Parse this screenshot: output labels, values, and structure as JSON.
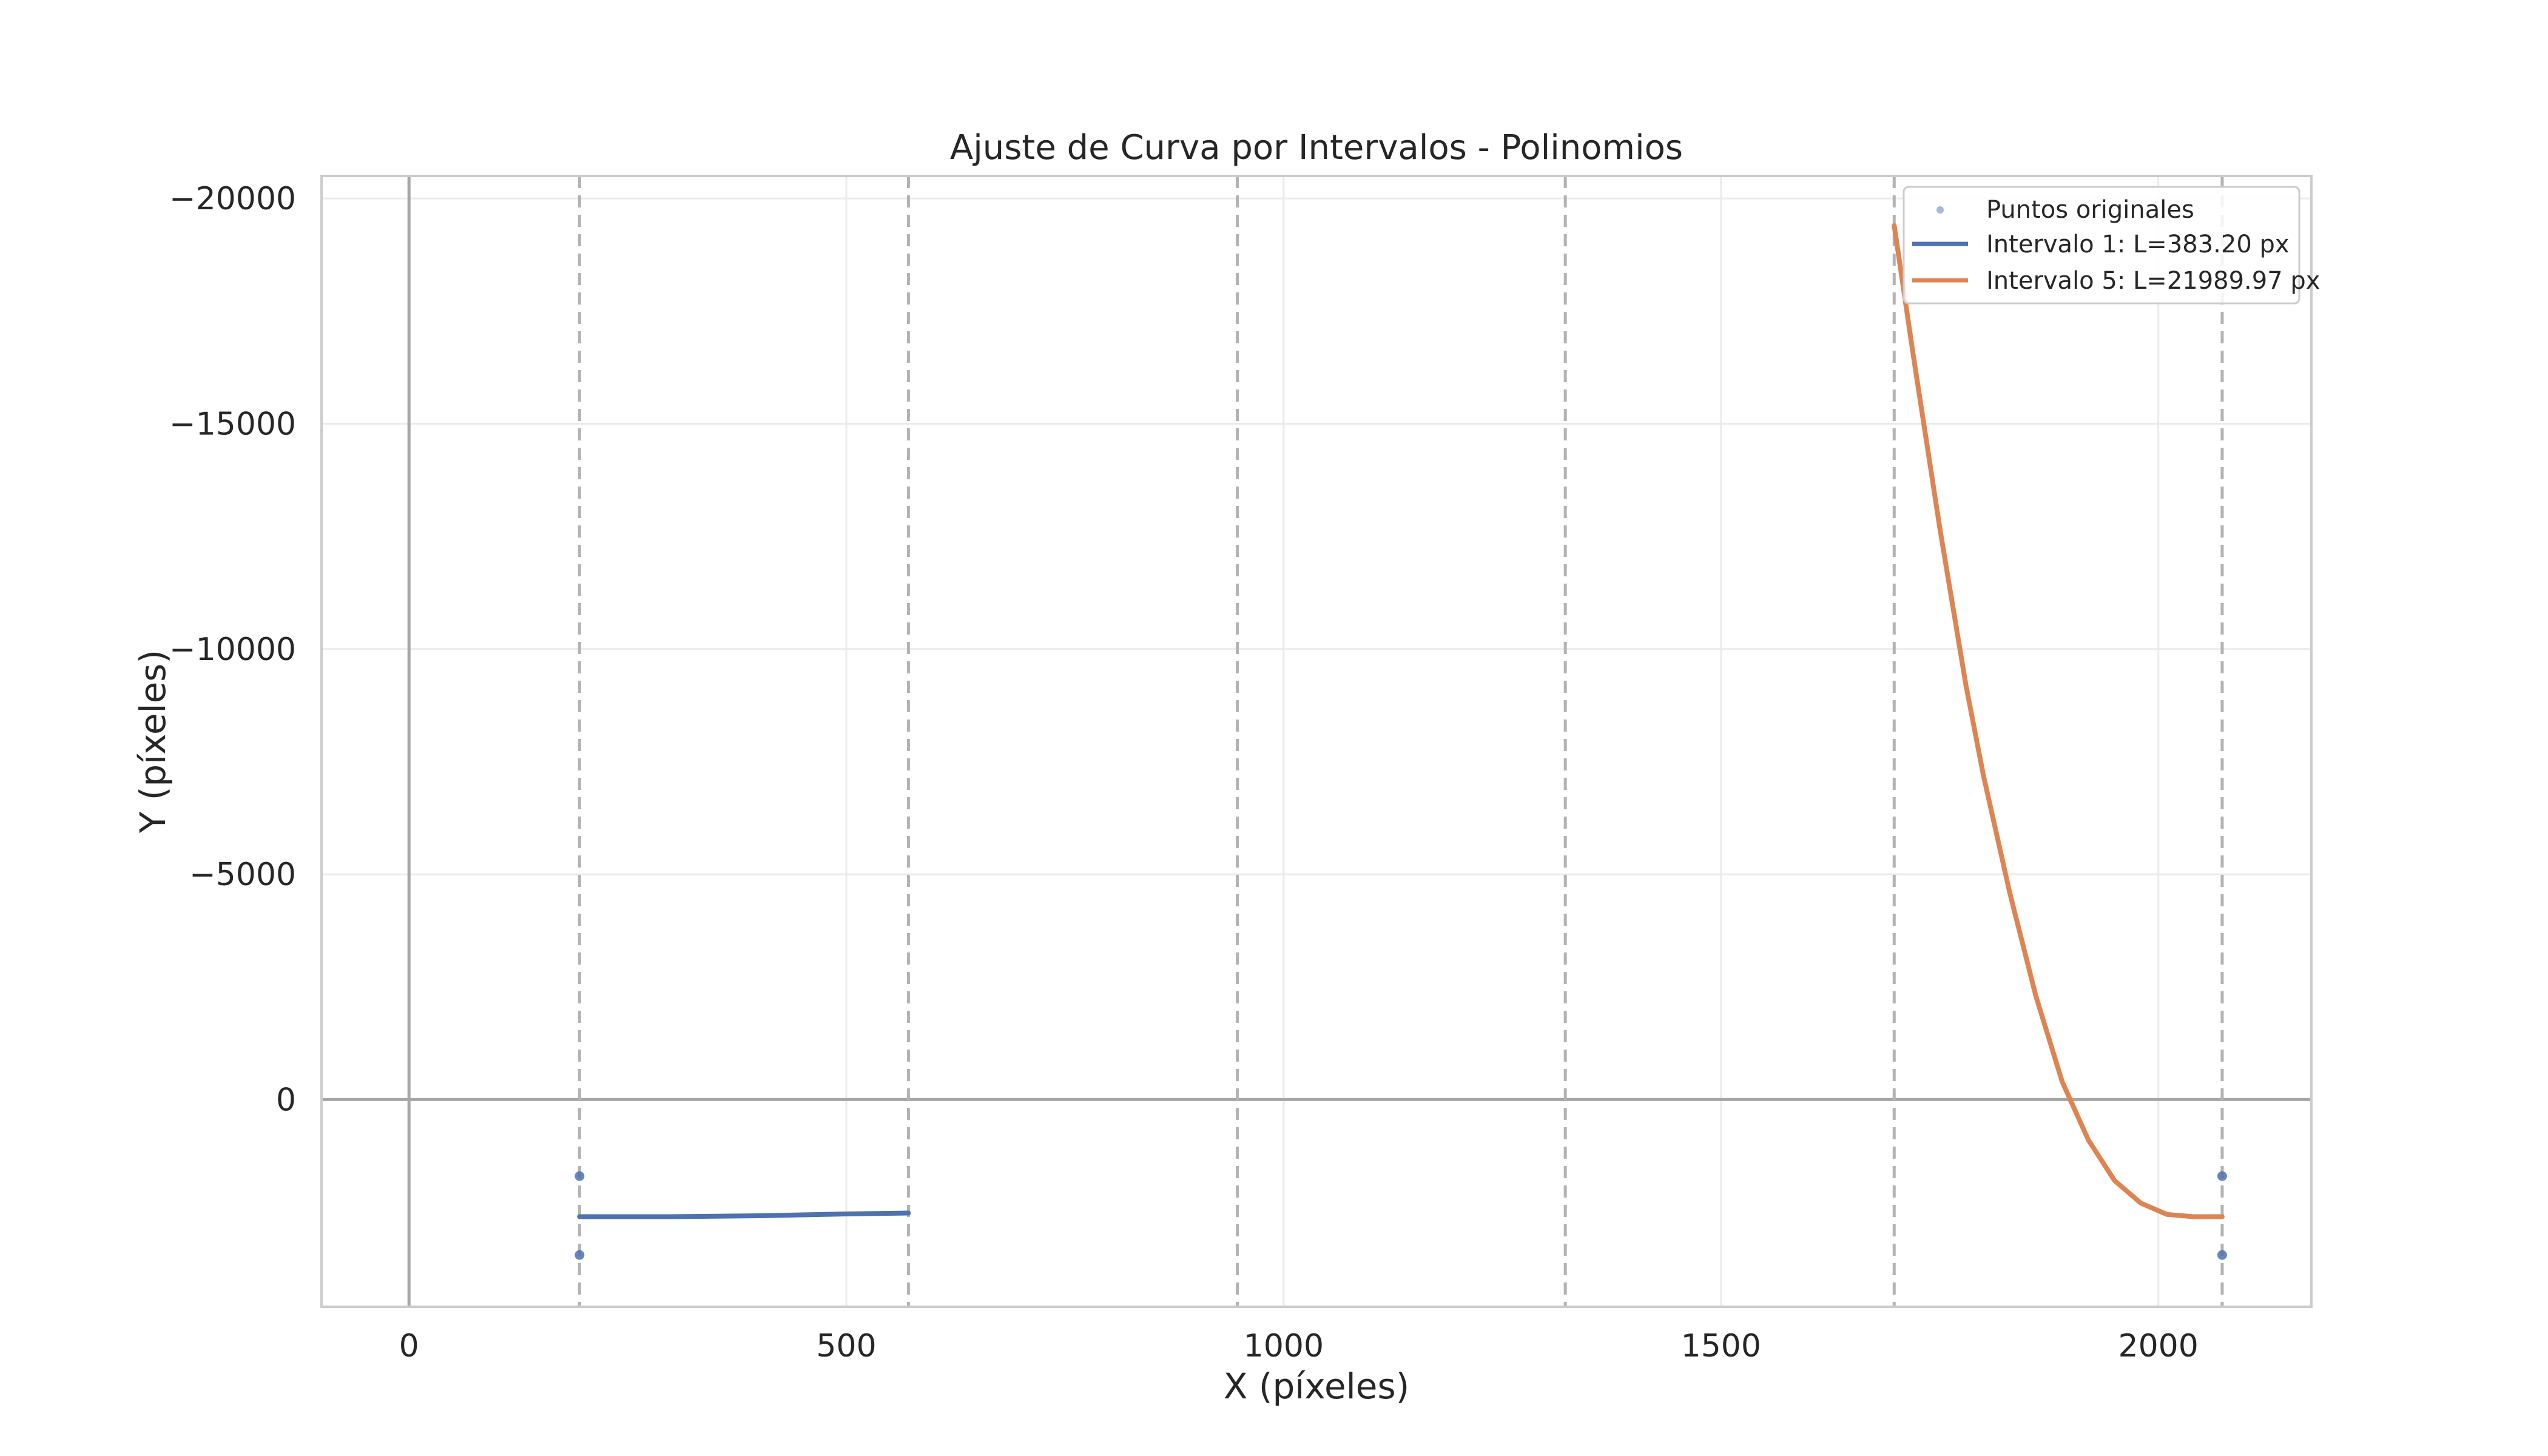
{
  "chart_data": {
    "type": "line",
    "title": "Ajuste de Curva por Intervalos - Polinomios",
    "xlabel": "X (píxeles)",
    "ylabel": "Y (píxeles)",
    "xlim": [
      -100,
      2175
    ],
    "ylim": [
      4600,
      -20500
    ],
    "y_inverted": true,
    "grid": true,
    "legend_position": "top-right",
    "x_ticks": [
      {
        "value": 0,
        "label": "0"
      },
      {
        "value": 500,
        "label": "500"
      },
      {
        "value": 1000,
        "label": "1000"
      },
      {
        "value": 1500,
        "label": "1500"
      },
      {
        "value": 2000,
        "label": "2000"
      }
    ],
    "y_ticks": [
      {
        "value": -20000,
        "label": "−20000"
      },
      {
        "value": -15000,
        "label": "−15000"
      },
      {
        "value": -10000,
        "label": "−10000"
      },
      {
        "value": -5000,
        "label": "−5000"
      },
      {
        "value": 0,
        "label": "0"
      }
    ],
    "interval_boundaries": [
      195,
      571,
      947,
      1322,
      1698,
      2073
    ],
    "reference_lines": {
      "x": 0,
      "y": 0
    },
    "series": [
      {
        "name": "Puntos originales",
        "kind": "scatter",
        "color": "#4c72b0",
        "points": [
          {
            "x": 195,
            "y": 1700
          },
          {
            "x": 195,
            "y": 3450
          },
          {
            "x": 2073,
            "y": 1700
          },
          {
            "x": 2073,
            "y": 3450
          }
        ]
      },
      {
        "name": "Intervalo 1: L=383.20 px",
        "kind": "line",
        "color": "#4c72b0",
        "points": [
          {
            "x": 195,
            "y": 2600
          },
          {
            "x": 300,
            "y": 2600
          },
          {
            "x": 400,
            "y": 2580
          },
          {
            "x": 500,
            "y": 2540
          },
          {
            "x": 571,
            "y": 2520
          }
        ]
      },
      {
        "name": "Intervalo 5: L=21989.97 px",
        "kind": "line",
        "color": "#dd8452",
        "points": [
          {
            "x": 1698,
            "y": -19400
          },
          {
            "x": 1720,
            "y": -16500
          },
          {
            "x": 1750,
            "y": -12700
          },
          {
            "x": 1780,
            "y": -9200
          },
          {
            "x": 1800,
            "y": -7200
          },
          {
            "x": 1830,
            "y": -4600
          },
          {
            "x": 1860,
            "y": -2300
          },
          {
            "x": 1890,
            "y": -400
          },
          {
            "x": 1920,
            "y": 900
          },
          {
            "x": 1950,
            "y": 1800
          },
          {
            "x": 1980,
            "y": 2300
          },
          {
            "x": 2010,
            "y": 2550
          },
          {
            "x": 2040,
            "y": 2600
          },
          {
            "x": 2073,
            "y": 2600
          }
        ]
      }
    ]
  }
}
